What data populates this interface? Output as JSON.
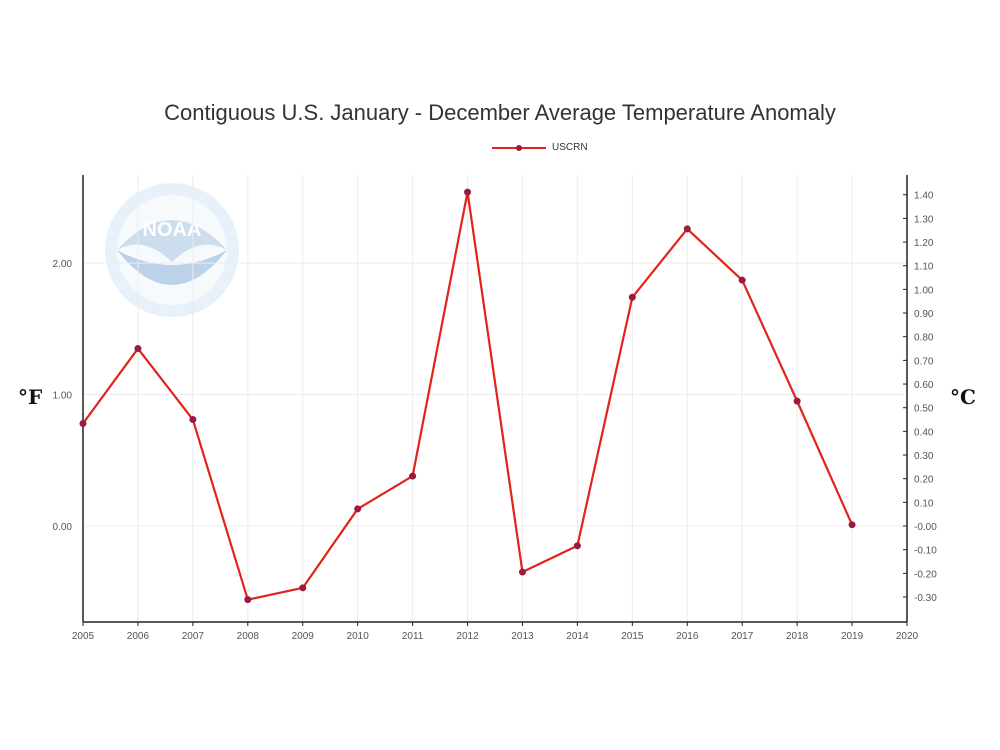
{
  "chart_data": {
    "type": "line",
    "title": "Contiguous U.S. January - December Average Temperature Anomaly",
    "legend": {
      "placement": "top-center",
      "entries": [
        "USCRN"
      ]
    },
    "x": [
      2005,
      2006,
      2007,
      2008,
      2009,
      2010,
      2011,
      2012,
      2013,
      2014,
      2015,
      2016,
      2017,
      2018,
      2019
    ],
    "series": [
      {
        "name": "USCRN",
        "color": "#e1241a",
        "marker_color": "#9b1b3f",
        "values": [
          0.78,
          1.35,
          0.81,
          -0.56,
          -0.47,
          0.13,
          0.38,
          2.54,
          -0.35,
          -0.15,
          1.74,
          2.26,
          1.87,
          0.95,
          0.01
        ]
      }
    ],
    "xlim": [
      2005,
      2020
    ],
    "x_ticks": [
      "2005",
      "2006",
      "2007",
      "2008",
      "2009",
      "2010",
      "2011",
      "2012",
      "2013",
      "2014",
      "2015",
      "2016",
      "2017",
      "2018",
      "2019",
      "2020"
    ],
    "ylim_left": [
      -0.73,
      2.67
    ],
    "left_ticks": [
      "0.00",
      "1.00",
      "2.00"
    ],
    "left_tick_values": [
      0,
      1,
      2
    ],
    "left_unit": "°F",
    "right_ticks": [
      "-0.30",
      "-0.20",
      "-0.10",
      "-0.00",
      "0.10",
      "0.20",
      "0.30",
      "0.40",
      "0.50",
      "0.60",
      "0.70",
      "0.80",
      "0.90",
      "1.00",
      "1.10",
      "1.20",
      "1.30",
      "1.40"
    ],
    "right_tick_values": [
      -0.3,
      -0.2,
      -0.1,
      0.0,
      0.1,
      0.2,
      0.3,
      0.4,
      0.5,
      0.6,
      0.7,
      0.8,
      0.9,
      1.0,
      1.1,
      1.2,
      1.3,
      1.4
    ],
    "right_unit": "°C",
    "grid": true,
    "watermark": "NOAA"
  }
}
